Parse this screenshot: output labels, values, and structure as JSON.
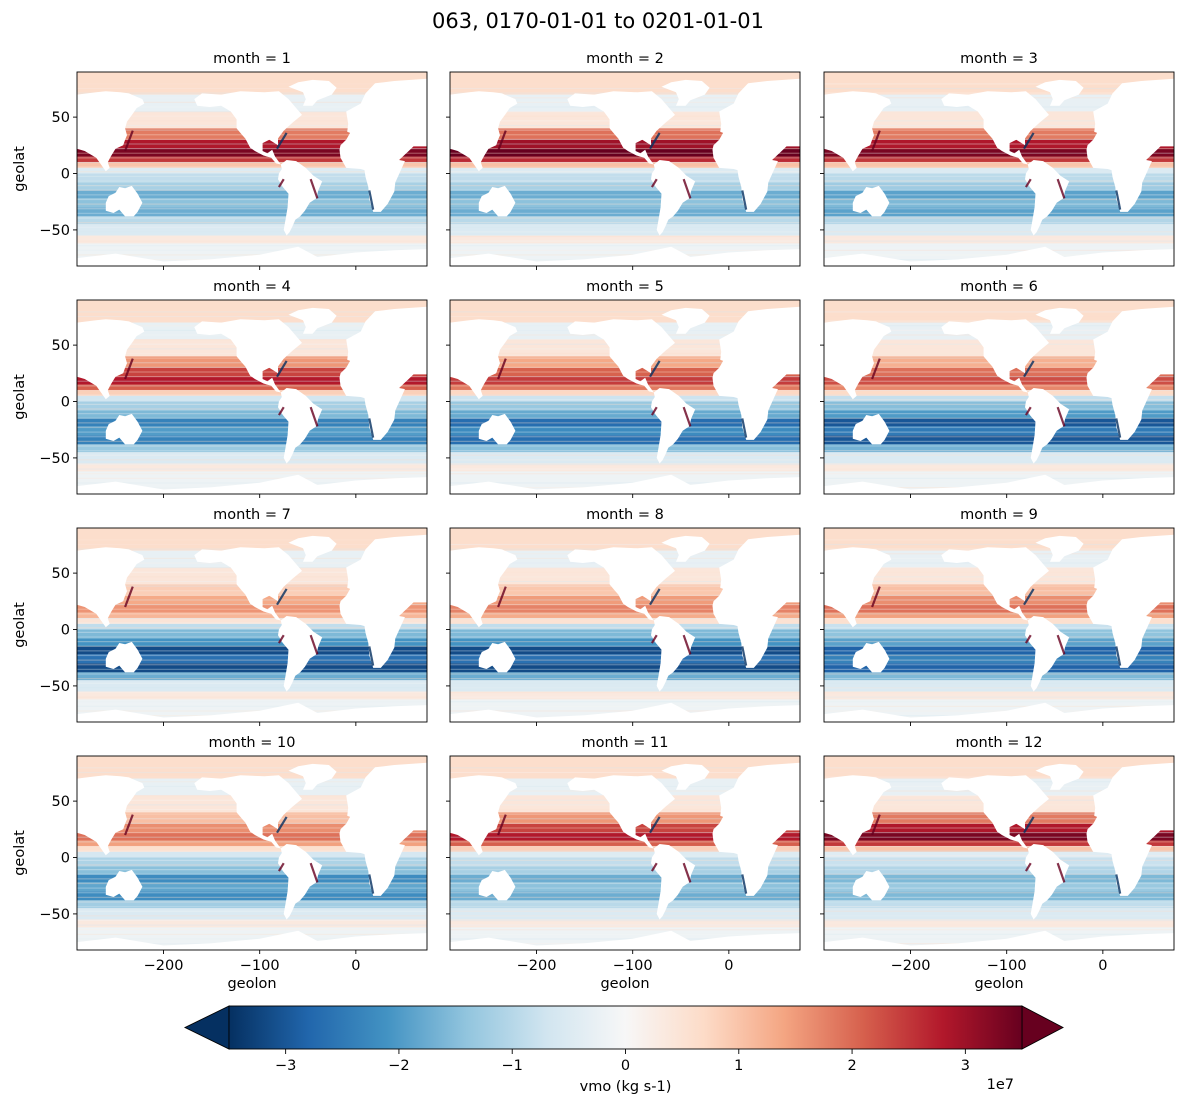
{
  "figure_title": "063, 0170-01-01 to 0201-01-01",
  "chart_data": {
    "type": "heatmap",
    "variable": "vmo",
    "facet_by": "month",
    "panels": [
      {
        "title": "month = 1",
        "month": 1,
        "nh_intensity": 0.95,
        "sh_intensity": 0.55
      },
      {
        "title": "month = 2",
        "month": 2,
        "nh_intensity": 1.0,
        "sh_intensity": 0.55
      },
      {
        "title": "month = 3",
        "month": 3,
        "nh_intensity": 0.95,
        "sh_intensity": 0.6
      },
      {
        "title": "month = 4",
        "month": 4,
        "nh_intensity": 0.8,
        "sh_intensity": 0.75
      },
      {
        "title": "month = 5",
        "month": 5,
        "nh_intensity": 0.7,
        "sh_intensity": 0.85
      },
      {
        "title": "month = 6",
        "month": 6,
        "nh_intensity": 0.65,
        "sh_intensity": 0.95
      },
      {
        "title": "month = 7",
        "month": 7,
        "nh_intensity": 0.45,
        "sh_intensity": 1.0
      },
      {
        "title": "month = 8",
        "month": 8,
        "nh_intensity": 0.5,
        "sh_intensity": 1.0
      },
      {
        "title": "month = 9",
        "month": 9,
        "nh_intensity": 0.55,
        "sh_intensity": 0.9
      },
      {
        "title": "month = 10",
        "month": 10,
        "nh_intensity": 0.55,
        "sh_intensity": 0.7
      },
      {
        "title": "month = 11",
        "month": 11,
        "nh_intensity": 0.8,
        "sh_intensity": 0.55
      },
      {
        "title": "month = 12",
        "month": 12,
        "nh_intensity": 0.95,
        "sh_intensity": 0.5
      }
    ],
    "xlabel": "geolon",
    "ylabel": "geolat",
    "xlim": [
      -290,
      74
    ],
    "ylim": [
      -82,
      90
    ],
    "xticks": [
      -200,
      -100,
      0
    ],
    "xtick_labels": [
      "−200",
      "−100",
      "0"
    ],
    "yticks": [
      50,
      0,
      -50
    ],
    "ytick_labels": [
      "50",
      "0",
      "−50"
    ],
    "colorbar": {
      "label": "vmo (kg s-1)",
      "range": [
        -3.5,
        3.5
      ],
      "ticks": [
        -3,
        -2,
        -1,
        0,
        1,
        2,
        3
      ],
      "tick_labels": [
        "−3",
        "−2",
        "−1",
        "0",
        "1",
        "2",
        "3"
      ],
      "offset_label": "1e7",
      "extend": "both",
      "colormap": "RdBu_r",
      "colors": [
        "#053061",
        "#2166ac",
        "#4393c3",
        "#92c5de",
        "#d1e5f0",
        "#f7f7f7",
        "#fddbc7",
        "#f4a582",
        "#d6604d",
        "#b2182b",
        "#67001f"
      ]
    },
    "land_color": "#ffffff",
    "grid": false
  }
}
